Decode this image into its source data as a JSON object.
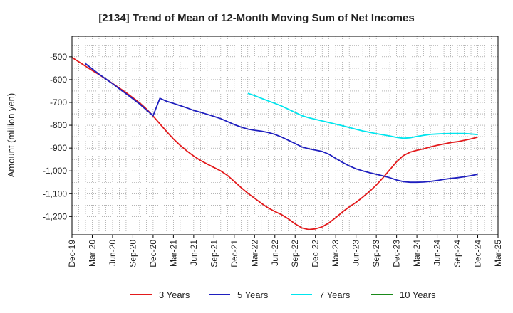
{
  "chart_data": {
    "type": "line",
    "title": "[2134]  Trend of Mean of 12-Month Moving Sum of Net Incomes",
    "xlabel": "",
    "ylabel": "Amount (million yen)",
    "x_ticks": [
      "Dec-19",
      "Mar-20",
      "Jun-20",
      "Sep-20",
      "Dec-20",
      "Mar-21",
      "Jun-21",
      "Sep-21",
      "Dec-21",
      "Mar-22",
      "Jun-22",
      "Sep-22",
      "Dec-22",
      "Mar-23",
      "Jun-23",
      "Sep-23",
      "Dec-23",
      "Mar-24",
      "Jun-24",
      "Sep-24",
      "Dec-24",
      "Mar-25"
    ],
    "y_ticks": [
      -500,
      -600,
      -700,
      -800,
      -900,
      -1000,
      -1100,
      -1200
    ],
    "y_tick_labels": [
      "-500",
      "-600",
      "-700",
      "-800",
      "-900",
      "-1,000",
      "-1,100",
      "-1,200"
    ],
    "ylim": [
      -1280,
      -410
    ],
    "grid": true,
    "legend_position": "bottom",
    "series": [
      {
        "name": "3 Years",
        "color": "#e31a1c",
        "x": [
          "Dec-19",
          "Jan-20",
          "Feb-20",
          "Mar-20",
          "Apr-20",
          "May-20",
          "Jun-20",
          "Jul-20",
          "Aug-20",
          "Sep-20",
          "Oct-20",
          "Nov-20",
          "Dec-20",
          "Jan-21",
          "Feb-21",
          "Mar-21",
          "Apr-21",
          "May-21",
          "Jun-21",
          "Jul-21",
          "Aug-21",
          "Sep-21",
          "Oct-21",
          "Nov-21",
          "Dec-21",
          "Jan-22",
          "Feb-22",
          "Mar-22",
          "Apr-22",
          "May-22",
          "Jun-22",
          "Jul-22",
          "Aug-22",
          "Sep-22",
          "Oct-22",
          "Nov-22",
          "Dec-22",
          "Jan-23",
          "Feb-23",
          "Mar-23",
          "Apr-23",
          "May-23",
          "Jun-23",
          "Jul-23",
          "Aug-23",
          "Sep-23",
          "Oct-23",
          "Nov-23",
          "Dec-23",
          "Jan-24",
          "Feb-24",
          "Mar-24",
          "Apr-24",
          "May-24",
          "Jun-24",
          "Jul-24",
          "Aug-24",
          "Sep-24",
          "Oct-24",
          "Nov-24",
          "Dec-24"
        ],
        "values": [
          -503,
          -522,
          -541,
          -560,
          -578,
          -597,
          -617,
          -637,
          -657,
          -679,
          -702,
          -728,
          -760,
          -794,
          -828,
          -860,
          -888,
          -913,
          -935,
          -954,
          -970,
          -985,
          -1000,
          -1020,
          -1046,
          -1073,
          -1098,
          -1120,
          -1142,
          -1162,
          -1178,
          -1192,
          -1210,
          -1232,
          -1250,
          -1257,
          -1254,
          -1245,
          -1228,
          -1205,
          -1180,
          -1158,
          -1138,
          -1115,
          -1090,
          -1062,
          -1030,
          -995,
          -960,
          -933,
          -918,
          -910,
          -903,
          -895,
          -888,
          -882,
          -876,
          -872,
          -866,
          -860,
          -852
        ]
      },
      {
        "name": "5 Years",
        "color": "#1f1fbf",
        "x": [
          "Feb-20",
          "Mar-20",
          "Apr-20",
          "May-20",
          "Jun-20",
          "Jul-20",
          "Aug-20",
          "Sep-20",
          "Oct-20",
          "Nov-20",
          "Dec-20",
          "Jan-21",
          "Feb-21",
          "Mar-21",
          "Apr-21",
          "May-21",
          "Jun-21",
          "Jul-21",
          "Aug-21",
          "Sep-21",
          "Oct-21",
          "Nov-21",
          "Dec-21",
          "Jan-22",
          "Feb-22",
          "Mar-22",
          "Apr-22",
          "May-22",
          "Jun-22",
          "Jul-22",
          "Aug-22",
          "Sep-22",
          "Oct-22",
          "Nov-22",
          "Dec-22",
          "Jan-23",
          "Feb-23",
          "Mar-23",
          "Apr-23",
          "May-23",
          "Jun-23",
          "Jul-23",
          "Aug-23",
          "Sep-23",
          "Oct-23",
          "Nov-23",
          "Dec-23",
          "Jan-24",
          "Feb-24",
          "Mar-24",
          "Apr-24",
          "May-24",
          "Jun-24",
          "Jul-24",
          "Aug-24",
          "Sep-24",
          "Oct-24",
          "Nov-24",
          "Dec-24"
        ],
        "values": [
          -530,
          -553,
          -576,
          -597,
          -618,
          -640,
          -662,
          -684,
          -707,
          -733,
          -758,
          -682,
          -695,
          -704,
          -714,
          -724,
          -735,
          -743,
          -752,
          -761,
          -771,
          -784,
          -797,
          -808,
          -817,
          -822,
          -826,
          -832,
          -840,
          -852,
          -866,
          -880,
          -895,
          -903,
          -909,
          -915,
          -927,
          -945,
          -963,
          -978,
          -991,
          -1000,
          -1008,
          -1015,
          -1022,
          -1030,
          -1040,
          -1047,
          -1050,
          -1050,
          -1049,
          -1046,
          -1042,
          -1037,
          -1033,
          -1030,
          -1026,
          -1021,
          -1015
        ]
      },
      {
        "name": "7 Years",
        "color": "#00e5ee",
        "x": [
          "Feb-22",
          "Mar-22",
          "Apr-22",
          "May-22",
          "Jun-22",
          "Jul-22",
          "Aug-22",
          "Sep-22",
          "Oct-22",
          "Nov-22",
          "Dec-22",
          "Jan-23",
          "Feb-23",
          "Mar-23",
          "Apr-23",
          "May-23",
          "Jun-23",
          "Jul-23",
          "Aug-23",
          "Sep-23",
          "Oct-23",
          "Nov-23",
          "Dec-23",
          "Jan-24",
          "Feb-24",
          "Mar-24",
          "Apr-24",
          "May-24",
          "Jun-24",
          "Jul-24",
          "Aug-24",
          "Sep-24",
          "Oct-24",
          "Nov-24",
          "Dec-24"
        ],
        "values": [
          -660,
          -670,
          -682,
          -693,
          -704,
          -716,
          -730,
          -744,
          -758,
          -767,
          -774,
          -781,
          -788,
          -795,
          -802,
          -810,
          -818,
          -825,
          -831,
          -837,
          -842,
          -847,
          -853,
          -857,
          -855,
          -849,
          -844,
          -840,
          -838,
          -837,
          -836,
          -836,
          -836,
          -838,
          -841
        ]
      },
      {
        "name": "10 Years",
        "color": "#1a8a1a",
        "x": [],
        "values": []
      }
    ]
  }
}
